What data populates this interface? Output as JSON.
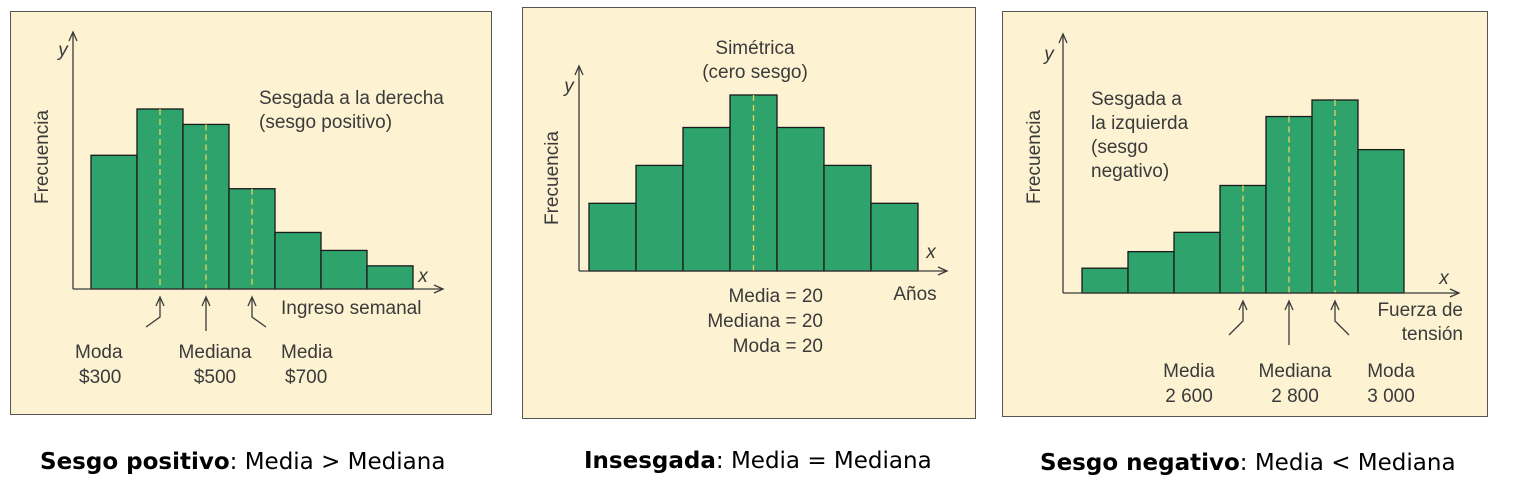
{
  "chart_data": [
    {
      "type": "bar",
      "title": "Sesgada a la derecha\n(sesgo positivo)",
      "ylabel": "Frecuencia",
      "xlabel": "Ingreso semanal",
      "x_axis_symbol": "x",
      "y_axis_symbol": "y",
      "values": [
        5.2,
        7.0,
        6.4,
        3.9,
        2.2,
        1.5,
        0.9
      ],
      "ylim": [
        0,
        8.5
      ],
      "markers": [
        {
          "label": "Moda",
          "value": "$300",
          "bar_position": 1.5
        },
        {
          "label": "Mediana",
          "value": "$500",
          "bar_position": 2.5
        },
        {
          "label": "Media",
          "value": "$700",
          "bar_position": 3.5
        }
      ],
      "bar_color": "#2ea36b",
      "caption_bold": "Sesgo positivo",
      "caption_rest": ": Media > Mediana"
    },
    {
      "type": "bar",
      "title": "Simétrica\n(cero sesgo)",
      "ylabel": "Frecuencia",
      "xlabel": "Años",
      "x_axis_symbol": "x",
      "y_axis_symbol": "y",
      "values": [
        2.5,
        3.9,
        5.3,
        6.5,
        5.3,
        3.9,
        2.5
      ],
      "ylim": [
        0,
        7.0
      ],
      "markers": [
        {
          "label": "",
          "value": "",
          "bar_position": 3.5
        }
      ],
      "center_labels": [
        "Media = 20",
        "Mediana = 20",
        "Moda = 20"
      ],
      "bar_color": "#2ea36b",
      "caption_bold": "Insesgada",
      "caption_rest": ": Media = Mediana"
    },
    {
      "type": "bar",
      "title": "Sesgada a\nla izquierda\n(sesgo\nnegativo)",
      "ylabel": "Frecuencia",
      "xlabel": "Fuerza de\ntensión",
      "x_axis_symbol": "x",
      "y_axis_symbol": "y",
      "values": [
        0.9,
        1.5,
        2.2,
        3.9,
        6.4,
        7.0,
        5.2
      ],
      "ylim": [
        0,
        8.5
      ],
      "markers": [
        {
          "label": "Media",
          "value": "2 600",
          "bar_position": 3.5
        },
        {
          "label": "Mediana",
          "value": "2 800",
          "bar_position": 4.5
        },
        {
          "label": "Moda",
          "value": "3 000",
          "bar_position": 5.5
        }
      ],
      "bar_color": "#2ea36b",
      "caption_bold": "Sesgo negativo",
      "caption_rest": ": Media < Mediana"
    }
  ]
}
